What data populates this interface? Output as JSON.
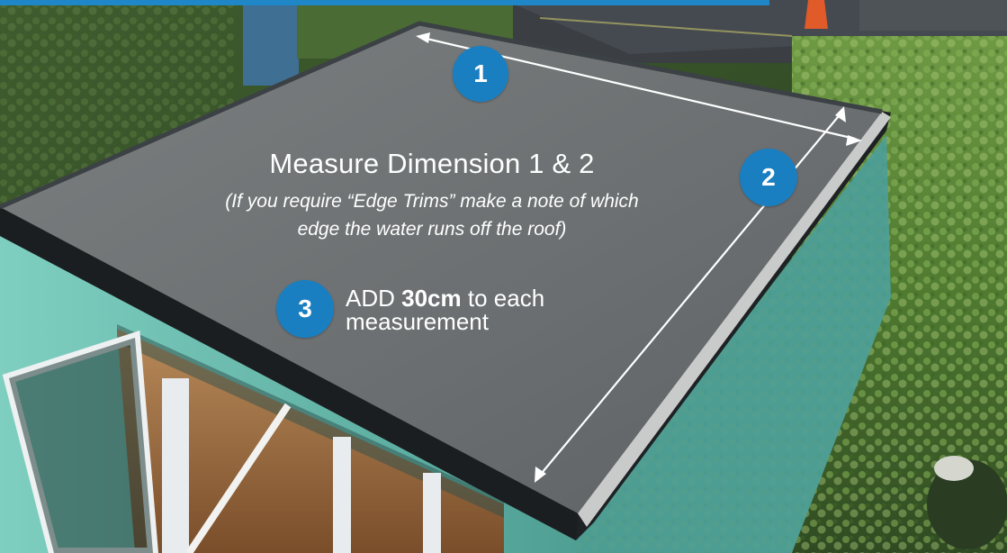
{
  "badges": {
    "one": "1",
    "two": "2",
    "three": "3"
  },
  "headline": "Measure Dimension 1 & 2",
  "note": {
    "line1": "(If you require “Edge Trims” make a note of which",
    "line2": "edge the water runs off the roof)"
  },
  "instruction": {
    "prefix": "ADD",
    "amount": "30cm",
    "suffix": "to each",
    "line2": "measurement"
  },
  "colors": {
    "accent_blue": "#1a7fc1",
    "roof_membrane": "#6f7375",
    "wall_teal": "#5fb8ab",
    "hedge_green": "#5a8a3a"
  }
}
